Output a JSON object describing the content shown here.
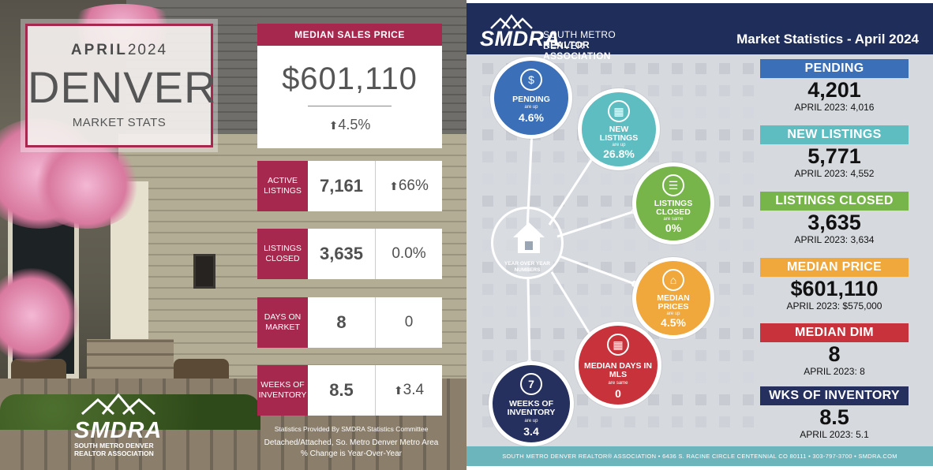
{
  "left": {
    "title_month": "APRIL",
    "title_year": "2024",
    "title_city": "DENVER",
    "title_sub": "MARKET STATS",
    "median_sales_price": {
      "label": "MEDIAN SALES PRICE",
      "value": "$601,110",
      "change": "4.5%"
    },
    "rows": [
      {
        "label": "ACTIVE LISTINGS",
        "value": "7,161",
        "change": "66%",
        "arrow": true
      },
      {
        "label": "LISTINGS CLOSED",
        "value": "3,635",
        "change": "0.0%",
        "arrow": false
      },
      {
        "label": "DAYS ON MARKET",
        "value": "8",
        "change": "0",
        "arrow": false
      },
      {
        "label": "WEEKS OF INVENTORY",
        "value": "8.5",
        "change": "3.4",
        "arrow": true
      }
    ],
    "logo": {
      "word": "SMDRA",
      "line1": "SOUTH METRO DENVER",
      "line2": "REALTOR ASSOCIATION"
    },
    "credits": {
      "line1": "Statistics Provided By SMDRA Statistics Committee",
      "line2": "Detached/Attached, So. Metro Denver Metro Area",
      "line3": "% Change is Year-Over-Year"
    },
    "arrow_glyph": "⬆",
    "accent_color": "#a7284f"
  },
  "right": {
    "logo": {
      "word": "SMDRA",
      "line1": "SOUTH METRO DENVER",
      "line2": "REALTOR ASSOCIATION"
    },
    "title": "Market Statistics - April 2024",
    "hub_label_1": "YEAR OVER YEAR",
    "hub_label_2": "NUMBERS",
    "bubbles": [
      {
        "key": "pending",
        "title": "PENDING",
        "sub": "are up",
        "value": "4.6%",
        "color": "#3b6fb8",
        "icon": "dollar-house-icon"
      },
      {
        "key": "new",
        "title": "NEW LISTINGS",
        "sub": "are up",
        "value": "26.8%",
        "color": "#5dbdc0",
        "icon": "calendar-icon"
      },
      {
        "key": "closed",
        "title": "LISTINGS CLOSED",
        "sub": "are same",
        "value": "0%",
        "color": "#77b54a",
        "icon": "list-icon"
      },
      {
        "key": "prices",
        "title": "MEDIAN PRICES",
        "sub": "are up",
        "value": "4.5%",
        "color": "#f0a73c",
        "icon": "house-dollar-icon"
      },
      {
        "key": "days",
        "title": "MEDIAN DAYS IN MLS",
        "sub": "are same",
        "value": "0",
        "color": "#c8333b",
        "icon": "calendar-grid-icon"
      },
      {
        "key": "weeks",
        "title": "WEEKS OF INVENTORY",
        "sub": "are up",
        "value": "3.4",
        "color": "#26305e",
        "icon": "calendar-seven-icon"
      }
    ],
    "stats": [
      {
        "head": "PENDING",
        "value": "4,201",
        "prev": "APRIL 2023: 4,016",
        "color": "#3b6fb8"
      },
      {
        "head": "NEW LISTINGS",
        "value": "5,771",
        "prev": "APRIL 2023: 4,552",
        "color": "#5dbdc0"
      },
      {
        "head": "LISTINGS CLOSED",
        "value": "3,635",
        "prev": "APRIL 2023: 3,634",
        "color": "#77b54a"
      },
      {
        "head": "MEDIAN PRICE",
        "value": "$601,110",
        "prev": "APRIL 2023: $575,000",
        "color": "#f0a73c"
      },
      {
        "head": "MEDIAN DIM",
        "value": "8",
        "prev": "APRIL 2023: 8",
        "color": "#c8333b"
      },
      {
        "head": "WKS OF INVENTORY",
        "value": "8.5",
        "prev": "APRIL 2023: 5.1",
        "color": "#26305e"
      }
    ],
    "icon_glyphs": {
      "pending": "$",
      "new": "▦",
      "closed": "☰",
      "prices": "⌂",
      "days": "▦",
      "weeks": "7"
    },
    "footer": "SOUTH METRO DENVER REALTOR® ASSOCIATION • 6436 S. RACINE CIRCLE CENTENNIAL CO 80111 • 303-797-3700 • SMDRA.COM"
  }
}
